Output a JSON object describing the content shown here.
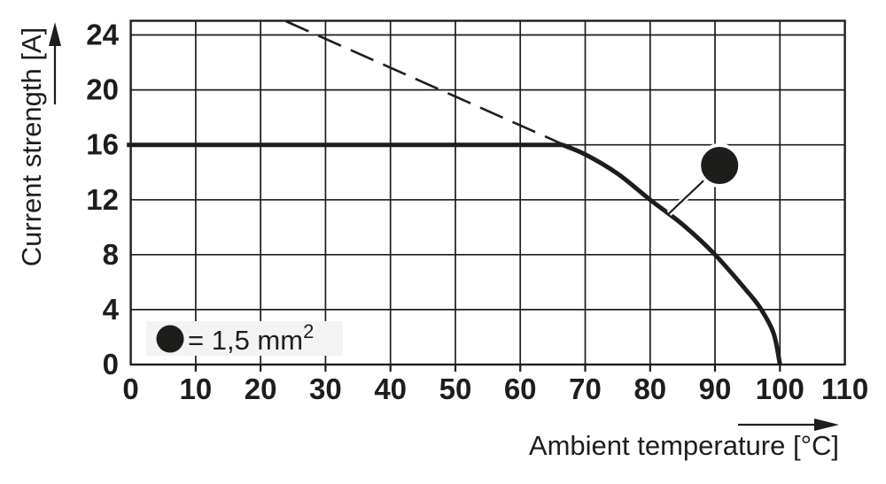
{
  "chart_data": {
    "type": "line",
    "title": "",
    "xlabel": "Ambient temperature [°C]",
    "ylabel": "Current strength [A]",
    "xlim": [
      0,
      110
    ],
    "ylim": [
      0,
      25
    ],
    "x_ticks": [
      0,
      10,
      20,
      30,
      40,
      50,
      60,
      70,
      80,
      90,
      100,
      110
    ],
    "y_ticks": [
      0,
      4,
      8,
      12,
      16,
      20,
      24
    ],
    "grid": true,
    "series": [
      {
        "name": "linear-derating-limit",
        "style": "dashed",
        "corner_index": 1,
        "points": [
          [
            23.9,
            25.0
          ],
          [
            66.5,
            16.05
          ]
        ]
      },
      {
        "name": "derating-curve-1_5mm2",
        "style": "solid",
        "corner_index": 1,
        "points": [
          [
            -0.6,
            16
          ],
          [
            66.5,
            16
          ],
          [
            70,
            15.3
          ],
          [
            75,
            13.9
          ],
          [
            80,
            12
          ],
          [
            85,
            10.2
          ],
          [
            90,
            8
          ],
          [
            95,
            5.3
          ],
          [
            97,
            4.1
          ],
          [
            99,
            2.3
          ],
          [
            100,
            0
          ]
        ]
      }
    ],
    "callout": {
      "label": "1",
      "circle_at": [
        90.7,
        14.5
      ],
      "attach_at": [
        82.9,
        11.0
      ]
    },
    "legend": {
      "label": "1",
      "text_prefix": "= 1,5 mm",
      "text_sup": "2"
    },
    "colors": {
      "ink": "#1d1d1b",
      "legend_bg": "#f3f3f3",
      "background": "#ffffff"
    }
  }
}
